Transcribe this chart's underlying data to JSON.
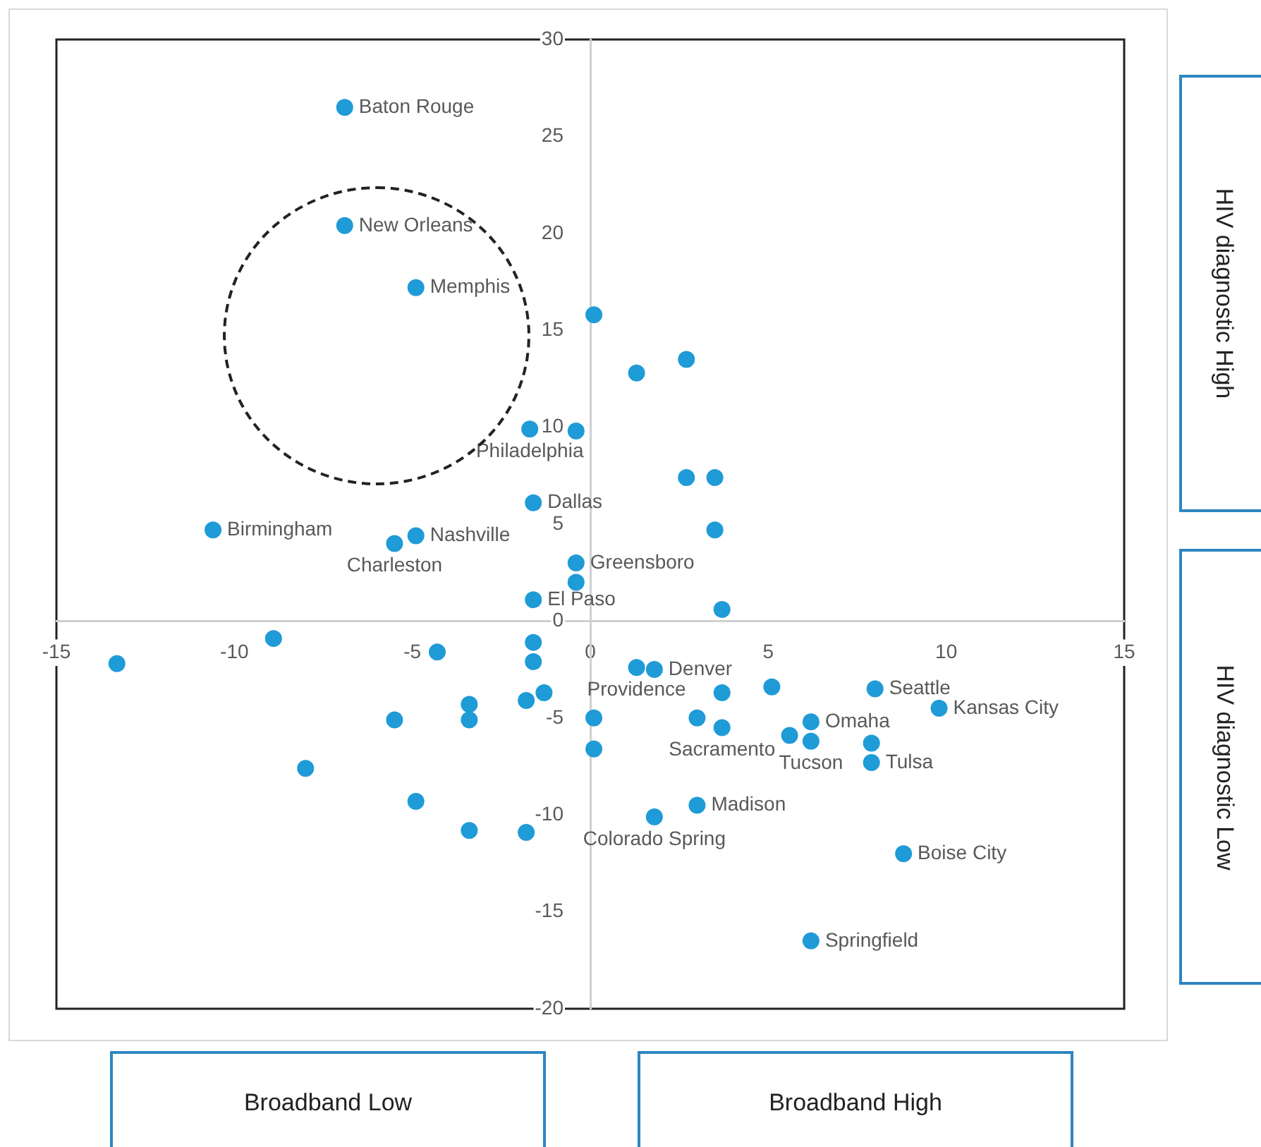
{
  "chart_data": {
    "type": "scatter",
    "xlim": [
      -15,
      15
    ],
    "ylim": [
      -20,
      30
    ],
    "xticks": [
      -15,
      -10,
      -5,
      0,
      5,
      10,
      15
    ],
    "yticks": [
      -20,
      -15,
      -10,
      -5,
      0,
      5,
      10,
      15,
      20,
      25,
      30
    ],
    "marker": "circle",
    "series": [
      {
        "color": "#1f9bd7",
        "x": [
          -6.9,
          -6.9,
          -4.9,
          0.1,
          1.3,
          2.7,
          -1.7,
          -0.4,
          -5.5,
          -4.9,
          -10.6,
          -1.6,
          2.7,
          3.5,
          3.5,
          -0.4,
          -0.4,
          -1.6,
          3.7,
          -13.3,
          -8.9,
          -4.3,
          -1.6,
          -1.6,
          -1.3,
          -1.8,
          -3.4,
          -3.4,
          -5.5,
          -8.0,
          -4.9,
          -3.4,
          -1.8,
          0.1,
          0.1,
          1.3,
          1.8,
          3.7,
          5.1,
          8.0,
          9.8,
          3.0,
          3.7,
          5.6,
          6.2,
          6.2,
          7.9,
          7.9,
          3.0,
          1.8,
          8.8,
          6.2
        ],
        "values": [
          26.5,
          20.4,
          17.2,
          15.8,
          12.8,
          13.5,
          9.9,
          9.8,
          4.0,
          4.4,
          4.7,
          6.1,
          7.4,
          7.4,
          4.7,
          3.0,
          2.0,
          1.1,
          0.6,
          -2.2,
          -0.9,
          -1.6,
          -1.1,
          -2.1,
          -3.7,
          -4.1,
          -4.3,
          -5.1,
          -5.1,
          -7.6,
          -9.3,
          -10.8,
          -10.9,
          -5.0,
          -6.6,
          -2.4,
          -2.5,
          -3.7,
          -3.4,
          -3.5,
          -4.5,
          -5.0,
          -5.5,
          -5.9,
          -5.2,
          -6.2,
          -6.3,
          -7.3,
          -9.5,
          -10.1,
          -12.0,
          -16.5
        ]
      }
    ],
    "annotations": [
      "HIV diagnostic High",
      "HIV diagnostic Low",
      "Broadband Low",
      "Broadband High",
      {
        "text": "Baton Rouge",
        "x": -6.9,
        "y": 26.5
      },
      {
        "text": "New Orleans",
        "x": -6.9,
        "y": 20.4
      },
      {
        "text": "Memphis",
        "x": -4.9,
        "y": 17.2
      },
      {
        "text": "Philadelphia",
        "x": -1.7,
        "y": 9.9
      },
      {
        "text": "Charleston",
        "x": -5.5,
        "y": 4.0
      },
      {
        "text": "Nashville",
        "x": -4.9,
        "y": 4.4
      },
      {
        "text": "Birmingham",
        "x": -10.6,
        "y": 4.7
      },
      {
        "text": "Dallas",
        "x": -1.6,
        "y": 6.1
      },
      {
        "text": "Greensboro",
        "x": -0.4,
        "y": 3.0
      },
      {
        "text": "El Paso",
        "x": -1.6,
        "y": 1.1
      },
      {
        "text": "Providence",
        "x": 1.3,
        "y": -2.4
      },
      {
        "text": "Denver",
        "x": 1.8,
        "y": -2.5
      },
      {
        "text": "Seattle",
        "x": 8.0,
        "y": -3.5
      },
      {
        "text": "Kansas City",
        "x": 9.8,
        "y": -4.5
      },
      {
        "text": "Omaha",
        "x": 6.2,
        "y": -5.2
      },
      {
        "text": "Sacramento",
        "x": 3.7,
        "y": -5.5
      },
      {
        "text": "Tucson",
        "x": 6.2,
        "y": -6.2
      },
      {
        "text": "Tulsa",
        "x": 7.9,
        "y": -7.3
      },
      {
        "text": "Madison",
        "x": 3.0,
        "y": -9.5
      },
      {
        "text": "Colorado Spring",
        "x": 1.8,
        "y": -10.1
      },
      {
        "text": "Boise City",
        "x": 8.8,
        "y": -12.0
      },
      {
        "text": "Springfield",
        "x": 6.2,
        "y": -16.5
      }
    ]
  }
}
